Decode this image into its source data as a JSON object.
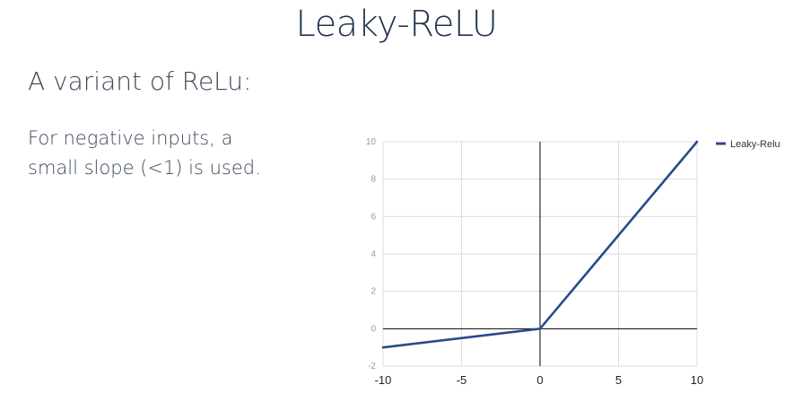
{
  "slide": {
    "title": "Leaky-ReLU",
    "subtitle": "A variant of ReLu:",
    "body_line1": "For negative inputs, a",
    "body_line2": "small slope (<1) is used."
  },
  "colors": {
    "title": "#1f3350",
    "text": "#3d4a5a",
    "series": "#2a4a8c",
    "grid": "#dcdcdc",
    "axis": "#000000",
    "tick_label": "#999999",
    "x_tick_label": "#222222"
  },
  "chart_data": {
    "type": "line",
    "title": "",
    "xlabel": "",
    "ylabel": "",
    "xlim": [
      -10,
      10
    ],
    "ylim": [
      -2,
      10
    ],
    "x_ticks": [
      "-10",
      "-5",
      "0",
      "5",
      "10"
    ],
    "y_ticks": [
      "-2",
      "0",
      "2",
      "4",
      "6",
      "8",
      "10"
    ],
    "grid": true,
    "legend_position": "top-right",
    "series": [
      {
        "name": "Leaky-Relu",
        "x": [
          -10,
          0,
          10
        ],
        "y": [
          -1,
          0,
          10
        ]
      }
    ]
  }
}
